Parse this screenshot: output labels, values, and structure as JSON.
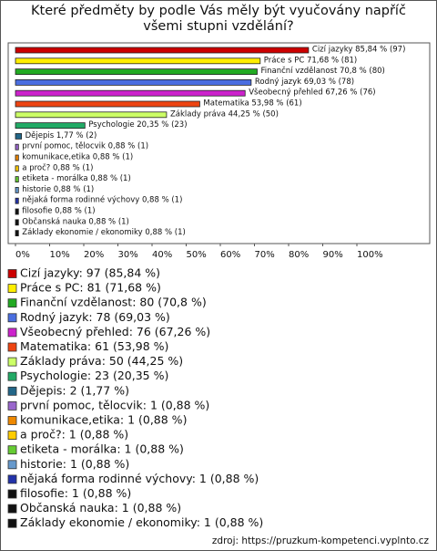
{
  "chart_data": {
    "type": "hbar",
    "title": "Které předměty by podle Vás měly být vyučovány napříč všemi stupni vzdělání?",
    "categories": [
      "Cizí jazyky",
      "Práce s PC",
      "Finanční vzdělanost",
      "Rodný jazyk",
      "Všeobecný přehled",
      "Matematika",
      "Základy práva",
      "Psychologie",
      "Dějepis",
      "první pomoc, tělocvik",
      "komunikace,etika",
      "a proč?",
      "etiketa - morálka",
      "historie",
      "nějaká forma rodinné výchovy",
      "filosofie",
      "Občanská nauka",
      "Základy ekonomie / ekonomiky"
    ],
    "values": [
      85.84,
      71.68,
      70.8,
      69.03,
      67.26,
      53.98,
      44.25,
      20.35,
      1.77,
      0.88,
      0.88,
      0.88,
      0.88,
      0.88,
      0.88,
      0.88,
      0.88,
      0.88
    ],
    "value_labels": [
      "Cizí jazyky 85,84 % (97)",
      "Práce s PC 71,68 % (81)",
      "Finanční vzdělanost 70,8 % (80)",
      "Rodný jazyk 69,03 % (78)",
      "Všeobecný přehled 67,26 % (76)",
      "Matematika 53,98 % (61)",
      "Základy práva 44,25 % (50)",
      "Psychologie 20,35 % (23)",
      "Dějepis 1,77 % (2)",
      "první pomoc, tělocvik 0,88 % (1)",
      "komunikace,etika 0,88 % (1)",
      "a proč? 0,88 % (1)",
      "etiketa - morálka 0,88 % (1)",
      "historie 0,88 % (1)",
      "nějaká forma rodinné výchovy 0,88 % (1)",
      "filosofie 0,88 % (1)",
      "Občanská nauka 0,88 % (1)",
      "Základy ekonomie / ekonomiky 0,88 % (1)"
    ],
    "legend_labels": [
      "Cizí jazyky: 97 (85,84 %)",
      "Práce s PC: 81 (71,68 %)",
      "Finanční vzdělanost: 80 (70,8 %)",
      "Rodný jazyk: 78 (69,03 %)",
      "Všeobecný přehled: 76 (67,26 %)",
      "Matematika: 61 (53,98 %)",
      "Základy práva: 50 (44,25 %)",
      "Psychologie: 23 (20,35 %)",
      "Dějepis: 2 (1,77 %)",
      "první pomoc, tělocvik: 1 (0,88 %)",
      "komunikace,etika: 1 (0,88 %)",
      "a proč?: 1 (0,88 %)",
      "etiketa - morálka: 1 (0,88 %)",
      "historie: 1 (0,88 %)",
      "nějaká forma rodinné výchovy: 1 (0,88 %)",
      "filosofie: 1 (0,88 %)",
      "Občanská nauka: 1 (0,88 %)",
      "Základy ekonomie / ekonomiky: 1 (0,88 %)"
    ],
    "colors": [
      "#cc0000",
      "#ffee00",
      "#22aa22",
      "#4a6ee0",
      "#cc22cc",
      "#ee4411",
      "#ccff66",
      "#22aa66",
      "#226688",
      "#9966cc",
      "#ee8800",
      "#ffcc00",
      "#66cc33",
      "#6699cc",
      "#2233aa",
      "#111111",
      "#111111",
      "#111111"
    ],
    "xlim": [
      0,
      120
    ],
    "xticks": [
      {
        "value": 0,
        "label": "0%"
      },
      {
        "value": 10,
        "label": "10%"
      },
      {
        "value": 20,
        "label": "20%"
      },
      {
        "value": 30,
        "label": "30%"
      },
      {
        "value": 40,
        "label": "40%"
      },
      {
        "value": 50,
        "label": "50%"
      },
      {
        "value": 60,
        "label": "60%"
      },
      {
        "value": 70,
        "label": "70%"
      },
      {
        "value": 80,
        "label": "80%"
      },
      {
        "value": 90,
        "label": "90%"
      },
      {
        "value": 100,
        "label": "100%"
      }
    ],
    "source": "zdroj: https://pruzkum-kompetenci.vyplnto.cz"
  }
}
